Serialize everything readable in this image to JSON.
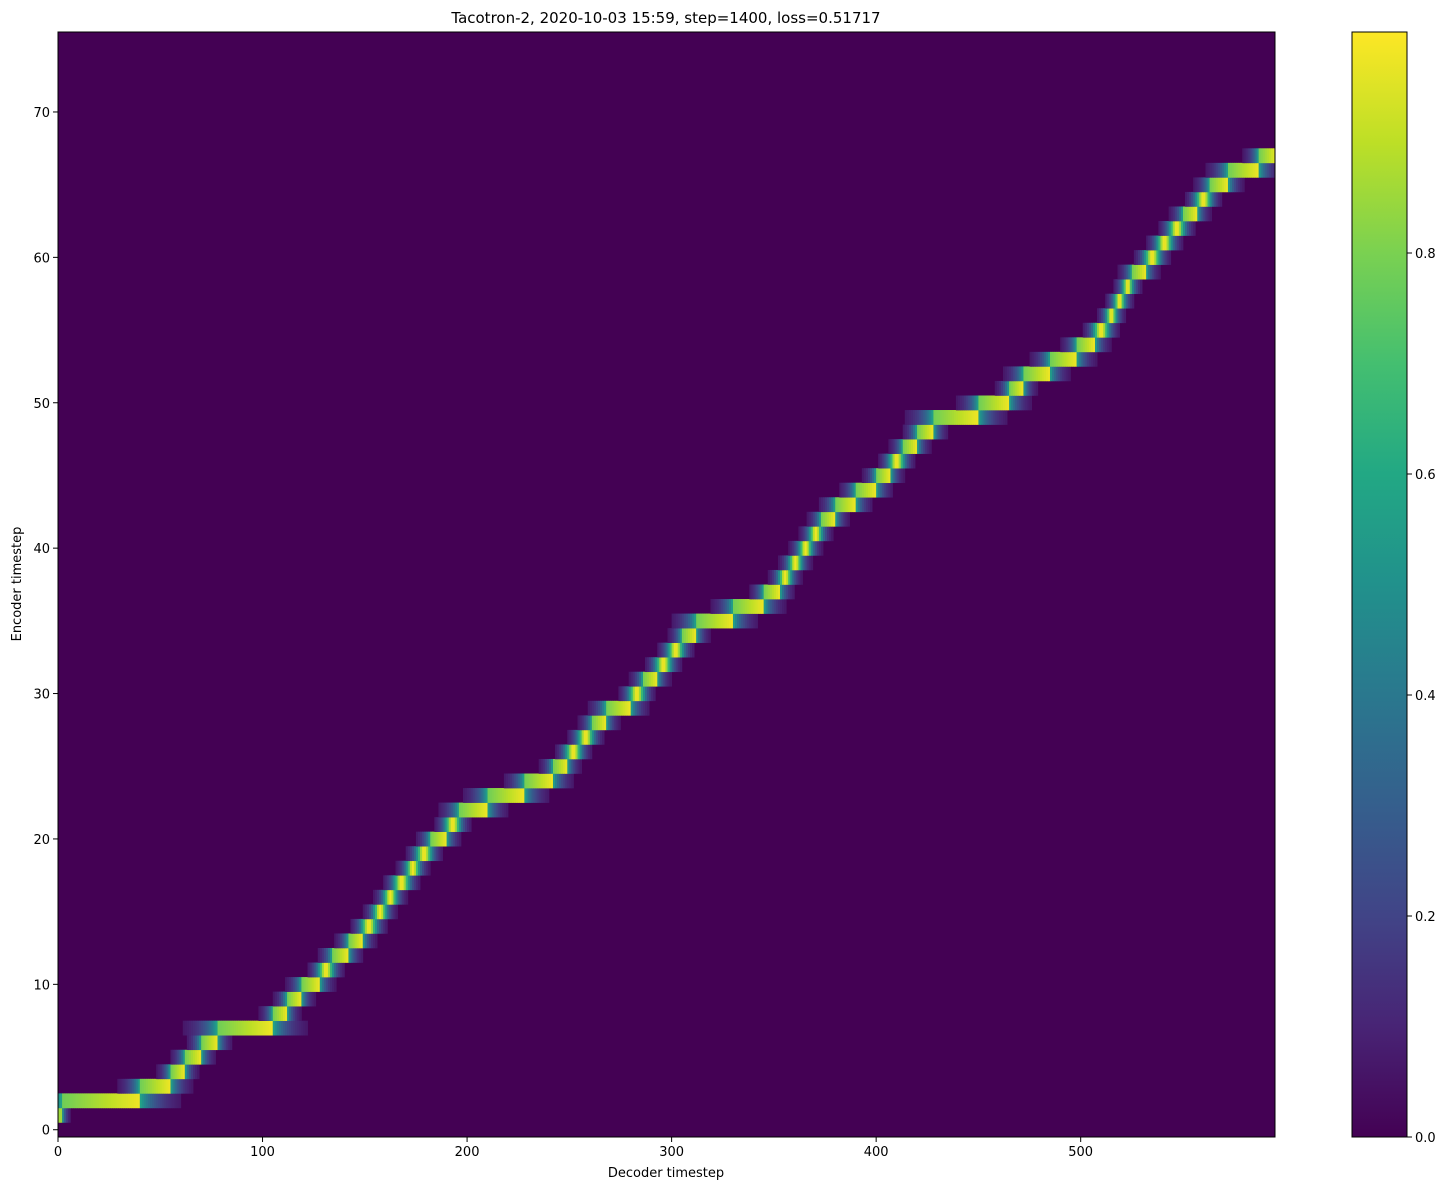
{
  "chart_data": {
    "type": "heatmap",
    "title": "Tacotron-2, 2020-10-03 15:59, step=1400, loss=0.51717",
    "xlabel": "Decoder timestep",
    "ylabel": "Encoder timestep",
    "xlim": [
      0,
      595
    ],
    "ylim": [
      -0.5,
      75.5
    ],
    "xticks": [
      0,
      100,
      200,
      300,
      400,
      500
    ],
    "yticks": [
      0,
      10,
      20,
      30,
      40,
      50,
      60,
      70
    ],
    "grid": false,
    "colormap": "viridis",
    "colorbar": {
      "range": [
        0,
        1
      ],
      "ticks": [
        0.0,
        0.2,
        0.4,
        0.6,
        0.8
      ]
    },
    "background_color": "#440154",
    "alignment": [
      [
        0,
        1
      ],
      [
        2,
        2
      ],
      [
        30,
        2
      ],
      [
        40,
        3
      ],
      [
        55,
        4
      ],
      [
        62,
        5
      ],
      [
        70,
        6
      ],
      [
        78,
        7
      ],
      [
        100,
        7
      ],
      [
        105,
        8
      ],
      [
        112,
        9
      ],
      [
        119,
        10
      ],
      [
        128,
        11
      ],
      [
        134,
        12
      ],
      [
        142,
        13
      ],
      [
        149,
        14
      ],
      [
        155,
        15
      ],
      [
        160,
        16
      ],
      [
        165,
        17
      ],
      [
        171,
        18
      ],
      [
        176,
        19
      ],
      [
        182,
        20
      ],
      [
        190,
        21
      ],
      [
        196,
        22
      ],
      [
        210,
        23
      ],
      [
        228,
        24
      ],
      [
        242,
        25
      ],
      [
        249,
        26
      ],
      [
        255,
        27
      ],
      [
        261,
        28
      ],
      [
        268,
        29
      ],
      [
        280,
        30
      ],
      [
        286,
        31
      ],
      [
        293,
        32
      ],
      [
        299,
        33
      ],
      [
        305,
        34
      ],
      [
        312,
        35
      ],
      [
        330,
        36
      ],
      [
        345,
        37
      ],
      [
        353,
        38
      ],
      [
        358,
        39
      ],
      [
        363,
        40
      ],
      [
        368,
        41
      ],
      [
        373,
        42
      ],
      [
        380,
        43
      ],
      [
        390,
        44
      ],
      [
        400,
        45
      ],
      [
        407,
        46
      ],
      [
        413,
        47
      ],
      [
        420,
        48
      ],
      [
        428,
        49
      ],
      [
        450,
        50
      ],
      [
        465,
        51
      ],
      [
        472,
        52
      ],
      [
        485,
        53
      ],
      [
        498,
        54
      ],
      [
        507,
        55
      ],
      [
        513,
        56
      ],
      [
        517,
        57
      ],
      [
        521,
        58
      ],
      [
        525,
        59
      ],
      [
        532,
        60
      ],
      [
        538,
        61
      ],
      [
        544,
        62
      ],
      [
        550,
        63
      ],
      [
        557,
        64
      ],
      [
        563,
        65
      ],
      [
        572,
        66
      ],
      [
        587,
        67
      ],
      [
        595,
        67
      ]
    ]
  }
}
